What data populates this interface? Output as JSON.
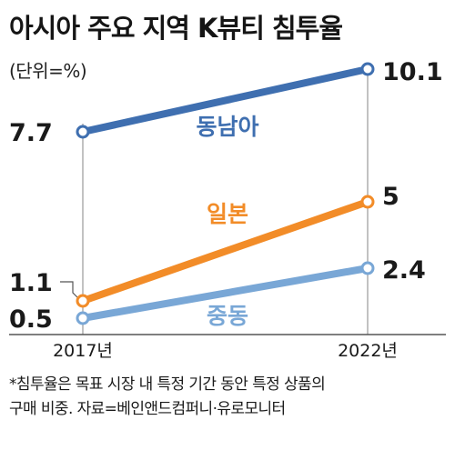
{
  "title": "아시아 주요 지역 K뷰티 침투율",
  "unit": "(단위=%)",
  "note_line1": "*침투율은 목표 시장 내 특정 기간 동안 특정 상품의",
  "note_line2": "구매 비중. 자료=베인앤드컴퍼니·유로모니터",
  "chart_data": {
    "type": "line",
    "categories": [
      "2017년",
      "2022년"
    ],
    "series": [
      {
        "name": "동남아",
        "values": [
          7.7,
          10.1
        ],
        "value_labels": [
          "7.7",
          "10.1"
        ],
        "color": "#3f6fb0"
      },
      {
        "name": "일본",
        "values": [
          1.1,
          5
        ],
        "value_labels": [
          "1.1",
          "5"
        ],
        "color": "#f28c28"
      },
      {
        "name": "중동",
        "values": [
          0.5,
          2.4
        ],
        "value_labels": [
          "0.5",
          "2.4"
        ],
        "color": "#79a7d6"
      }
    ],
    "grid": false,
    "legend": "inline labels on lines"
  }
}
